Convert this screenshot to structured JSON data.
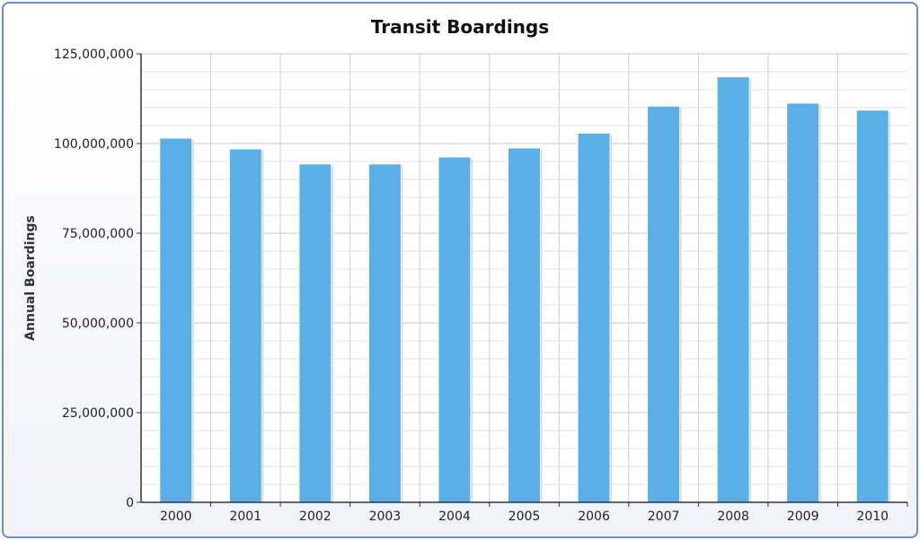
{
  "chart_data": {
    "type": "bar",
    "title": "Transit Boardings",
    "xlabel": "",
    "ylabel": "Annual Boardings",
    "categories": [
      "2000",
      "2001",
      "2002",
      "2003",
      "2004",
      "2005",
      "2006",
      "2007",
      "2008",
      "2009",
      "2010"
    ],
    "values": [
      101500000,
      98500000,
      94300000,
      94300000,
      96250000,
      98750000,
      102900000,
      110400000,
      118600000,
      111250000,
      109300000
    ],
    "ylim": [
      0,
      125000000
    ],
    "yticks": [
      "0",
      "25,000,000",
      "50,000,000",
      "75,000,000",
      "100,000,000",
      "125,000,000"
    ],
    "grid": true,
    "legend": "none",
    "bar_color": "#5ab0e6"
  }
}
